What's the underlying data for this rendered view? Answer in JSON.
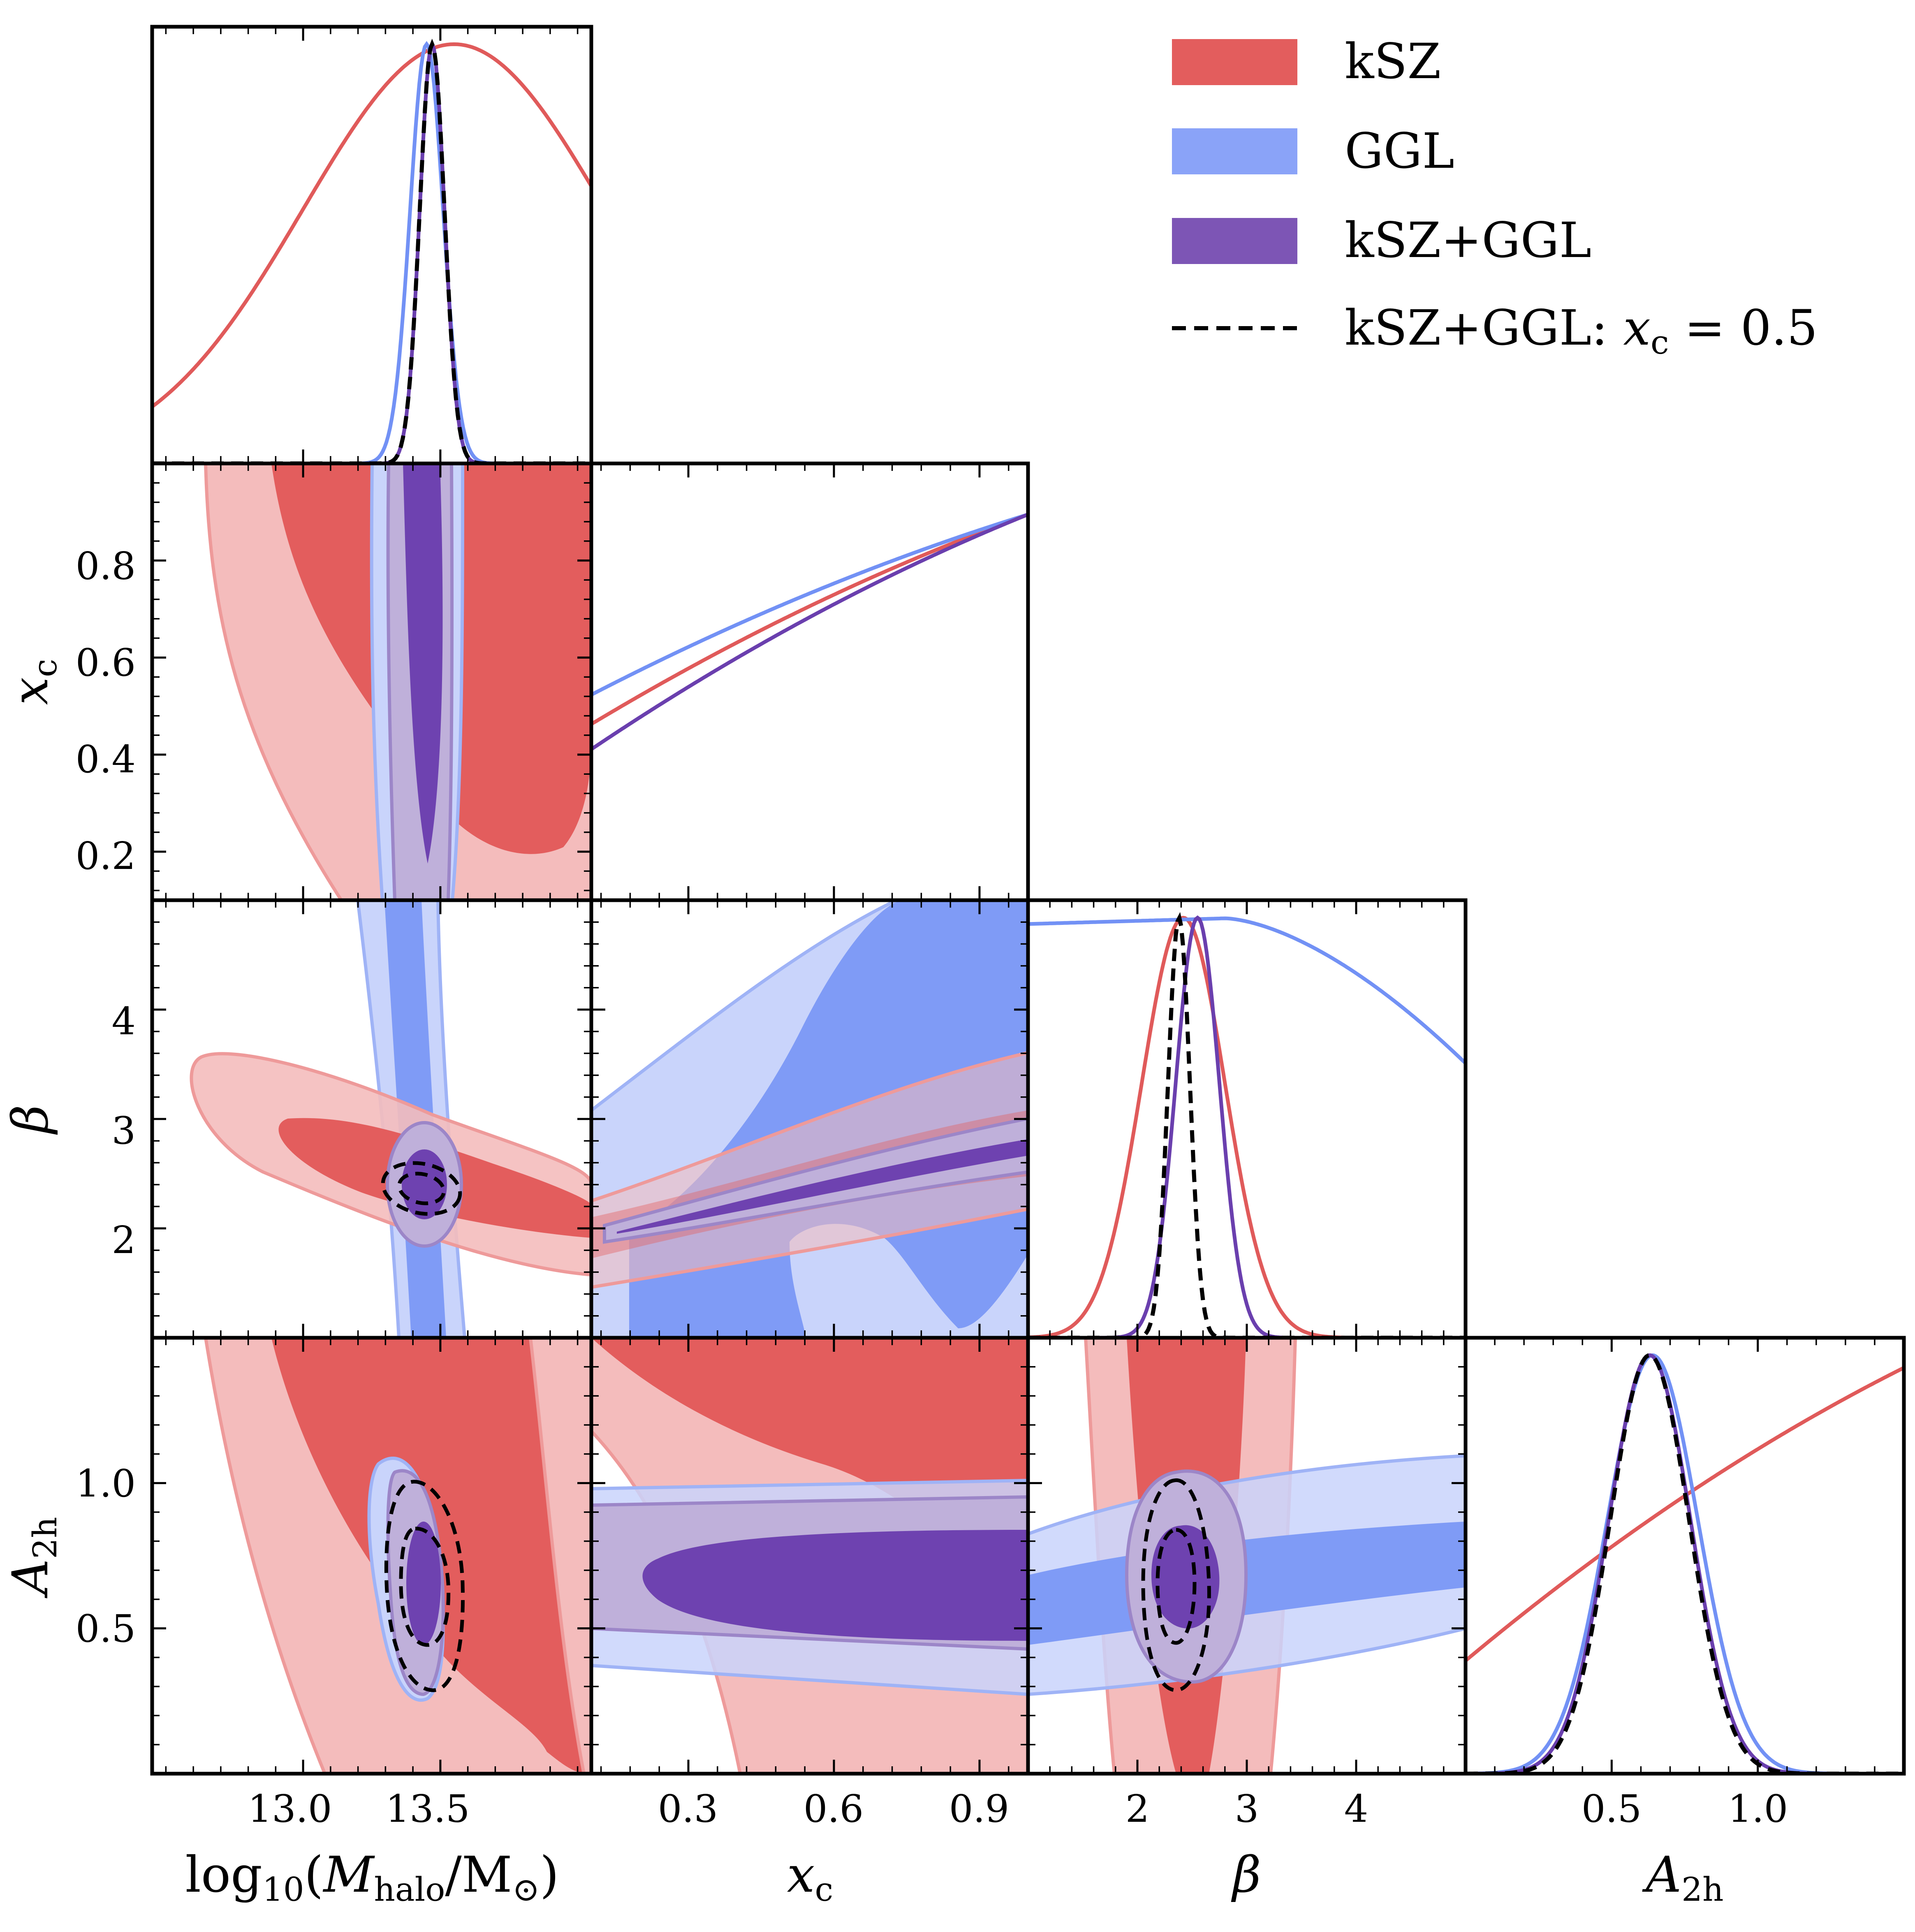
{
  "chart_data": {
    "type": "corner",
    "parameters": [
      {
        "name": "log10_mhalo",
        "label": "log₁₀(Mhalo/M⊙)",
        "range": [
          12.45,
          14.05
        ],
        "ticks": [
          13.0,
          13.5
        ],
        "tick_labels": [
          "13.0",
          "13.5"
        ]
      },
      {
        "name": "x_c",
        "label": "xc",
        "range": [
          0.1,
          1.0
        ],
        "ticks": [
          0.2,
          0.4,
          0.6,
          0.8
        ],
        "tick_labels": [
          "0.2",
          "0.4",
          "0.6",
          "0.8"
        ],
        "x_ticks": [
          0.3,
          0.6,
          0.9
        ],
        "x_tick_labels": [
          "0.3",
          "0.6",
          "0.9"
        ]
      },
      {
        "name": "beta",
        "label": "β",
        "range": [
          1.0,
          5.0
        ],
        "ticks": [
          2,
          3,
          4
        ],
        "tick_labels": [
          "2",
          "3",
          "4"
        ]
      },
      {
        "name": "A_2h",
        "label": "A2h",
        "range": [
          0.0,
          1.5
        ],
        "ticks": [
          0.5,
          1.0
        ],
        "tick_labels": [
          "0.5",
          "1.0"
        ]
      }
    ],
    "series": [
      {
        "name": "kSZ",
        "label": "kSZ",
        "color": "#e05a5a",
        "light_color": "#f4bcbc",
        "marginals": {
          "log10_mhalo": {
            "mean": 13.55,
            "sigma": 0.55
          },
          "x_c": {
            "start": 0.42,
            "end": 0.92,
            "shape": "rising"
          },
          "beta": {
            "mean": 2.42,
            "sigma": 0.38
          },
          "A_2h": {
            "start": 0.27,
            "end": 0.97,
            "shape": "rising"
          }
        }
      },
      {
        "name": "GGL",
        "label": "GGL",
        "color": "#7291f5",
        "light_color": "#c9d4fb",
        "marginals": {
          "log10_mhalo": {
            "mean": 13.45,
            "sigma": 0.06
          },
          "x_c": {
            "start": 0.49,
            "end": 0.92,
            "shape": "rising"
          },
          "beta": {
            "start": 0.985,
            "end": 0.64,
            "shape": "flat-falling"
          },
          "A_2h": {
            "mean": 0.64,
            "sigma": 0.155
          }
        }
      },
      {
        "name": "kSZ+GGL",
        "label": "kSZ+GGL",
        "color": "#6a3fae",
        "light_color": "#bfb0da",
        "marginals": {
          "log10_mhalo": {
            "mean": 13.47,
            "sigma": 0.045
          },
          "x_c": {
            "start": 0.36,
            "end": 0.92,
            "shape": "rising"
          },
          "beta": {
            "mean": 2.55,
            "sigma": 0.2
          },
          "A_2h": {
            "mean": 0.63,
            "sigma": 0.14
          }
        }
      },
      {
        "name": "kSZ+GGL: xc=0.5",
        "label": "kSZ+GGL: xc = 0.5",
        "label_prefix": "kSZ+GGL: ",
        "label_var": "x",
        "label_sub": "c",
        "label_suffix": " = 0.5",
        "color": "#000000",
        "style": "dashed",
        "marginals": {
          "log10_mhalo": {
            "mean": 13.47,
            "sigma": 0.045
          },
          "beta": {
            "mean": 2.38,
            "sigma": 0.1
          },
          "A_2h": {
            "mean": 0.63,
            "sigma": 0.135
          }
        }
      }
    ],
    "legend": {
      "position": "top-right"
    }
  }
}
